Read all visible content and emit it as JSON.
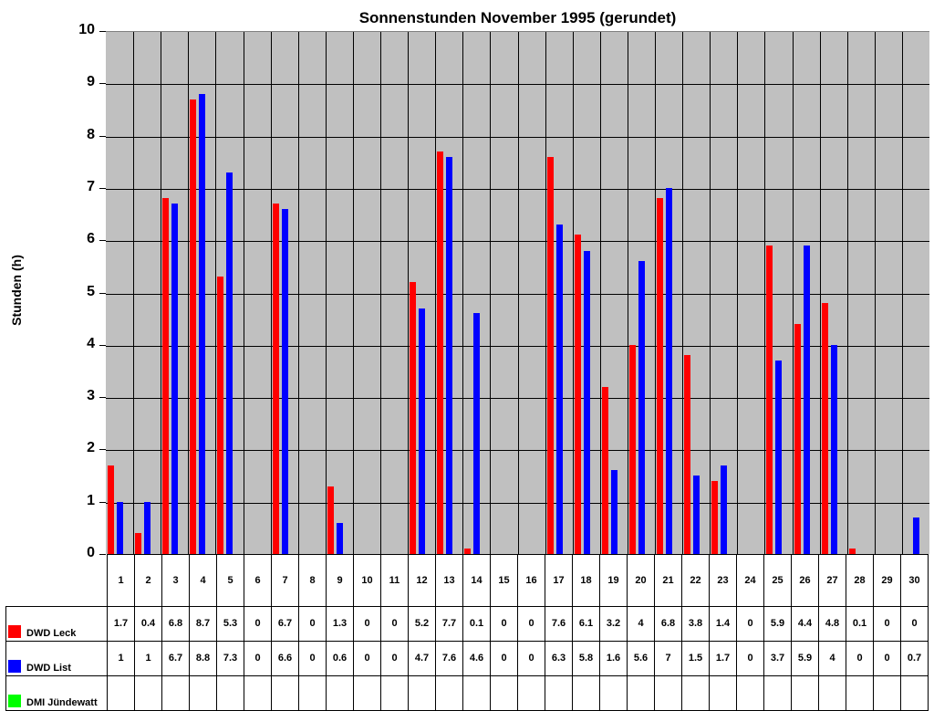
{
  "chart_data": {
    "type": "bar",
    "title": "Sonnenstunden November 1995 (gerundet)",
    "xlabel": "",
    "ylabel": "Stunden (h)",
    "ylim": [
      0,
      10
    ],
    "yticks": [
      0,
      1,
      2,
      3,
      4,
      5,
      6,
      7,
      8,
      9,
      10
    ],
    "grid": true,
    "legend_position": "data-table-left",
    "categories": [
      "1",
      "2",
      "3",
      "4",
      "5",
      "6",
      "7",
      "8",
      "9",
      "10",
      "11",
      "12",
      "13",
      "14",
      "15",
      "16",
      "17",
      "18",
      "19",
      "20",
      "21",
      "22",
      "23",
      "24",
      "25",
      "26",
      "27",
      "28",
      "29",
      "30"
    ],
    "series": [
      {
        "name": "DWD Leck",
        "color": "#ff0000",
        "values": [
          1.7,
          0.4,
          6.8,
          8.7,
          5.3,
          0,
          6.7,
          0,
          1.3,
          0,
          0,
          5.2,
          7.7,
          0.1,
          0,
          0,
          7.6,
          6.1,
          3.2,
          4,
          6.8,
          3.8,
          1.4,
          0,
          5.9,
          4.4,
          4.8,
          0.1,
          0,
          0
        ]
      },
      {
        "name": "DWD List",
        "color": "#0000ff",
        "values": [
          1,
          1,
          6.7,
          8.8,
          7.3,
          0,
          6.6,
          0,
          0.6,
          0,
          0,
          4.7,
          7.6,
          4.6,
          0,
          0,
          6.3,
          5.8,
          1.6,
          5.6,
          7,
          1.5,
          1.7,
          0,
          3.7,
          5.9,
          4,
          0,
          0,
          0.7
        ]
      },
      {
        "name": "DMI Jündewatt",
        "color": "#00ff00",
        "values": []
      }
    ]
  }
}
